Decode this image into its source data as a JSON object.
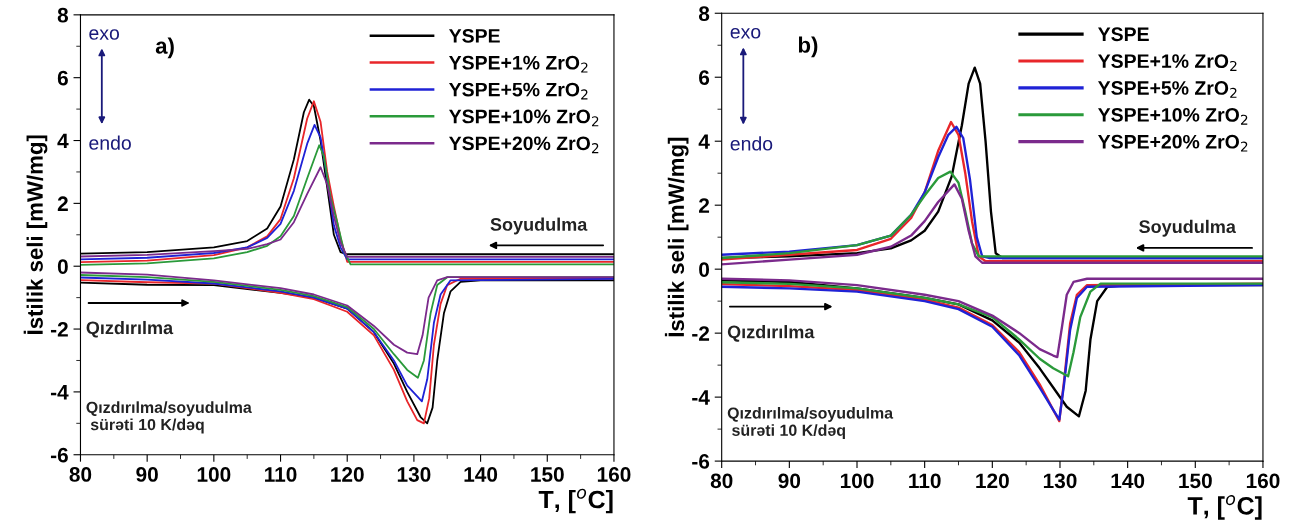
{
  "chart_data": [
    {
      "type": "line",
      "ylabel": "İstilik seli [mW/mg]",
      "xlabel": "T, [$^{o}$C]",
      "legend": "top right",
      "grid": false,
      "marker": "none",
      "line_style": "solid",
      "xlim": [
        80,
        160
      ],
      "ylim": [
        -6,
        8
      ],
      "xticks": [
        80,
        {
          "value": 85,
          "label": null
        },
        90,
        {
          "value": 95,
          "label": null
        },
        100,
        {
          "value": 105,
          "label": null
        },
        110,
        {
          "value": 115,
          "label": null
        },
        120,
        {
          "value": 125,
          "label": null
        },
        130,
        {
          "value": 135,
          "label": null
        },
        140,
        {
          "value": 145,
          "label": null
        },
        150,
        {
          "value": 155,
          "label": null
        },
        160
      ],
      "yticks": [
        -6,
        {
          "value": -5,
          "label": null
        },
        -4,
        {
          "value": -3,
          "label": null
        },
        -2,
        {
          "value": -1,
          "label": null
        },
        0,
        {
          "value": 1,
          "label": null
        },
        2,
        {
          "value": 3,
          "label": null
        },
        4,
        {
          "value": 5,
          "label": null
        },
        6,
        {
          "value": 7,
          "label": null
        },
        8
      ],
      "annotations": [
        "exo",
        "endo",
        "a)",
        "Soyudulma",
        "Qızdırılma",
        "Qızdırılma/soyudulma\n sürəti 10 K/dəq"
      ],
      "series": [
        {
          "name": "YSPE",
          "color": "#000000",
          "x": [
            80,
            90,
            100,
            105,
            108,
            110,
            112,
            113.5,
            114.3,
            115,
            116,
            117,
            118,
            119,
            120,
            130,
            140,
            160
          ],
          "values": [
            0.4,
            0.45,
            0.6,
            0.8,
            1.2,
            1.9,
            3.4,
            4.9,
            5.3,
            5.1,
            4.0,
            2.5,
            1.0,
            0.45,
            0.38,
            0.38,
            0.38,
            0.38
          ]
        },
        {
          "name": "YSPE+1% ZrO$_{2}$",
          "color": "#e8262a",
          "x": [
            80,
            90,
            100,
            105,
            108,
            110,
            112,
            114,
            115,
            116,
            117,
            118,
            119,
            120,
            160
          ],
          "values": [
            0.13,
            0.18,
            0.35,
            0.6,
            0.95,
            1.5,
            2.8,
            4.7,
            5.25,
            4.6,
            3.0,
            1.9,
            0.9,
            0.14,
            0.14
          ]
        },
        {
          "name": "YSPE+5% ZrO$_{2}$",
          "color": "#1f22d6",
          "x": [
            80,
            90,
            100,
            105,
            108,
            110,
            112,
            114,
            115.1,
            116,
            117,
            118,
            119,
            120,
            160
          ],
          "values": [
            0.22,
            0.27,
            0.42,
            0.6,
            0.9,
            1.35,
            2.4,
            3.9,
            4.5,
            4.1,
            2.8,
            1.3,
            0.6,
            0.22,
            0.22
          ]
        },
        {
          "name": "YSPE+10% ZrO$_{2}$",
          "color": "#2a9a3a",
          "x": [
            80,
            90,
            100,
            105,
            108,
            110,
            112,
            114,
            115.8,
            116.5,
            117.5,
            118.5,
            119.5,
            120.5,
            160
          ],
          "values": [
            0.04,
            0.09,
            0.25,
            0.45,
            0.65,
            0.95,
            1.6,
            2.8,
            3.85,
            3.5,
            2.2,
            1.4,
            0.5,
            0.06,
            0.06
          ]
        },
        {
          "name": "YSPE+20% ZrO$_{2}$",
          "color": "#7b2a8c",
          "x": [
            80,
            90,
            100,
            105,
            108,
            110,
            112,
            114,
            116,
            117,
            118,
            119,
            120,
            160
          ],
          "values": [
            0.31,
            0.36,
            0.48,
            0.55,
            0.7,
            0.85,
            1.4,
            2.3,
            3.15,
            2.6,
            1.6,
            0.75,
            0.3,
            0.3
          ]
        },
        {
          "color": "#000000",
          "x": [
            80,
            90,
            100,
            110,
            115,
            120,
            124,
            127,
            129,
            131,
            132,
            132.8,
            133.5,
            134.5,
            135.5,
            137,
            140,
            160
          ],
          "values": [
            -0.52,
            -0.59,
            -0.6,
            -0.85,
            -1.0,
            -1.35,
            -2.1,
            -3.1,
            -4.0,
            -4.8,
            -5.0,
            -4.5,
            -3.0,
            -1.5,
            -0.8,
            -0.5,
            -0.45,
            -0.45
          ]
        },
        {
          "color": "#e8262a",
          "x": [
            80,
            90,
            100,
            110,
            115,
            120,
            124,
            127,
            129,
            130.5,
            131.5,
            132.3,
            133,
            134,
            135,
            137,
            160
          ],
          "values": [
            -0.44,
            -0.51,
            -0.55,
            -0.85,
            -1.05,
            -1.45,
            -2.2,
            -3.3,
            -4.3,
            -4.9,
            -5.0,
            -4.2,
            -2.5,
            -1.2,
            -0.6,
            -0.4,
            -0.4
          ]
        },
        {
          "color": "#1f22d6",
          "x": [
            80,
            90,
            100,
            110,
            115,
            120,
            124,
            127,
            129,
            131.2,
            132,
            133,
            134,
            135.5,
            160
          ],
          "values": [
            -0.36,
            -0.43,
            -0.55,
            -0.8,
            -1.0,
            -1.35,
            -2.1,
            -3.0,
            -3.8,
            -4.3,
            -3.6,
            -1.8,
            -0.9,
            -0.45,
            -0.4
          ]
        },
        {
          "color": "#2a9a3a",
          "x": [
            80,
            90,
            100,
            110,
            115,
            120,
            124,
            127,
            129,
            130.6,
            131.5,
            132.5,
            133.5,
            135,
            160
          ],
          "values": [
            -0.28,
            -0.35,
            -0.5,
            -0.75,
            -0.95,
            -1.3,
            -2.0,
            -2.8,
            -3.3,
            -3.55,
            -3.0,
            -1.5,
            -0.6,
            -0.35,
            -0.35
          ]
        },
        {
          "color": "#7b2a8c",
          "x": [
            80,
            90,
            100,
            110,
            115,
            120,
            124,
            127,
            129,
            130.5,
            131.3,
            132.2,
            133.5,
            135,
            160
          ],
          "values": [
            -0.2,
            -0.27,
            -0.45,
            -0.7,
            -0.9,
            -1.25,
            -1.9,
            -2.5,
            -2.75,
            -2.8,
            -2.2,
            -1.0,
            -0.45,
            -0.35,
            -0.35
          ]
        }
      ]
    },
    {
      "type": "line",
      "ylabel": "İstilik seli [mW/mg]",
      "xlabel": "T, [$^{o}$C]",
      "legend": "top right",
      "grid": false,
      "marker": "none",
      "line_style": "solid",
      "xlim": [
        80,
        160
      ],
      "ylim": [
        -6,
        8
      ],
      "xticks": [
        80,
        {
          "value": 85,
          "label": null
        },
        90,
        {
          "value": 95,
          "label": null
        },
        100,
        {
          "value": 105,
          "label": null
        },
        110,
        {
          "value": 115,
          "label": null
        },
        120,
        {
          "value": 125,
          "label": null
        },
        130,
        {
          "value": 135,
          "label": null
        },
        140,
        {
          "value": 145,
          "label": null
        },
        150,
        {
          "value": 155,
          "label": null
        },
        160
      ],
      "yticks": [
        -6,
        {
          "value": -5,
          "label": null
        },
        -4,
        {
          "value": -3,
          "label": null
        },
        -2,
        {
          "value": -1,
          "label": null
        },
        0,
        {
          "value": 1,
          "label": null
        },
        2,
        {
          "value": 3,
          "label": null
        },
        4,
        {
          "value": 5,
          "label": null
        },
        6,
        {
          "value": 7,
          "label": null
        },
        8
      ],
      "annotations": [
        "exo",
        "endo",
        "b)",
        "Soyudulma",
        "Qızdırılma",
        "Qızdırılma/soyudulma\n sürəti 10 K/dəq"
      ],
      "series": [
        {
          "name": "YSPE",
          "color": "#000000",
          "x": [
            80,
            90,
            100,
            105,
            108,
            110,
            112,
            114,
            115.5,
            116.5,
            117.4,
            118.2,
            119,
            119.8,
            120.5,
            121.5,
            160
          ],
          "values": [
            0.35,
            0.4,
            0.5,
            0.65,
            0.9,
            1.2,
            1.8,
            2.9,
            4.5,
            5.8,
            6.3,
            5.8,
            4.0,
            1.8,
            0.5,
            0.35,
            0.35
          ]
        },
        {
          "name": "YSPE+1% ZrO$_{2}$",
          "color": "#e8262a",
          "x": [
            80,
            90,
            100,
            105,
            108,
            110,
            112,
            113.9,
            115,
            116,
            117,
            118,
            119,
            160
          ],
          "values": [
            0.3,
            0.45,
            0.6,
            0.95,
            1.6,
            2.4,
            3.7,
            4.6,
            4.2,
            3.0,
            1.5,
            0.4,
            0.25,
            0.25
          ]
        },
        {
          "name": "YSPE+5% ZrO$_{2}$",
          "color": "#1f22d6",
          "x": [
            80,
            90,
            100,
            105,
            108,
            110,
            112,
            113.5,
            114.7,
            115.7,
            116.7,
            117.7,
            118.5,
            119.5,
            160
          ],
          "values": [
            0.45,
            0.55,
            0.75,
            1.05,
            1.7,
            2.4,
            3.5,
            4.2,
            4.45,
            4.1,
            2.8,
            1.0,
            0.4,
            0.35,
            0.35
          ]
        },
        {
          "name": "YSPE+10% ZrO$_{2}$",
          "color": "#2a9a3a",
          "x": [
            80,
            90,
            100,
            105,
            108,
            110,
            112,
            113.8,
            115,
            116,
            117,
            118,
            119,
            160
          ],
          "values": [
            0.35,
            0.5,
            0.75,
            1.05,
            1.7,
            2.3,
            2.85,
            3.05,
            2.7,
            1.8,
            0.8,
            0.4,
            0.4,
            0.4
          ]
        },
        {
          "name": "YSPE+20% ZrO$_{2}$",
          "color": "#7b2a8c",
          "x": [
            80,
            90,
            100,
            105,
            108,
            110,
            112,
            114.4,
            115.5,
            116.5,
            117.5,
            118.5,
            160
          ],
          "values": [
            0.15,
            0.3,
            0.45,
            0.7,
            1.05,
            1.5,
            2.1,
            2.65,
            2.2,
            1.2,
            0.4,
            0.2,
            0.2
          ]
        },
        {
          "color": "#000000",
          "x": [
            80,
            90,
            100,
            110,
            115,
            120,
            124,
            127,
            129,
            131,
            132.8,
            133.8,
            134.5,
            135.5,
            137,
            140,
            160
          ],
          "values": [
            -0.35,
            -0.4,
            -0.6,
            -0.9,
            -1.1,
            -1.6,
            -2.3,
            -3.1,
            -3.7,
            -4.3,
            -4.6,
            -3.8,
            -2.2,
            -1.0,
            -0.55,
            -0.5,
            -0.5
          ]
        },
        {
          "color": "#e8262a",
          "x": [
            80,
            90,
            100,
            110,
            115,
            120,
            124,
            127,
            129,
            129.9,
            130.6,
            131.5,
            132.5,
            134,
            160
          ],
          "values": [
            -0.47,
            -0.53,
            -0.65,
            -0.95,
            -1.2,
            -1.75,
            -2.6,
            -3.6,
            -4.4,
            -4.75,
            -3.5,
            -1.7,
            -0.8,
            -0.5,
            -0.45
          ]
        },
        {
          "color": "#1f22d6",
          "x": [
            80,
            90,
            100,
            110,
            115,
            120,
            124,
            127,
            129,
            129.9,
            130.6,
            131.5,
            132.5,
            134,
            160
          ],
          "values": [
            -0.55,
            -0.6,
            -0.7,
            -1.0,
            -1.25,
            -1.8,
            -2.7,
            -3.7,
            -4.4,
            -4.7,
            -3.6,
            -1.9,
            -0.9,
            -0.55,
            -0.5
          ]
        },
        {
          "color": "#2a9a3a",
          "x": [
            80,
            90,
            100,
            110,
            115,
            120,
            124,
            127,
            129,
            131.2,
            132,
            133,
            134.5,
            136,
            160
          ],
          "values": [
            -0.41,
            -0.46,
            -0.6,
            -0.9,
            -1.1,
            -1.5,
            -2.2,
            -2.8,
            -3.1,
            -3.35,
            -2.6,
            -1.5,
            -0.7,
            -0.45,
            -0.45
          ]
        },
        {
          "color": "#7b2a8c",
          "x": [
            80,
            90,
            100,
            110,
            115,
            120,
            124,
            127,
            129,
            129.6,
            130.3,
            131,
            132,
            134,
            160
          ],
          "values": [
            -0.3,
            -0.35,
            -0.5,
            -0.8,
            -1.0,
            -1.45,
            -2.0,
            -2.5,
            -2.7,
            -2.75,
            -1.8,
            -0.8,
            -0.4,
            -0.3,
            -0.3
          ]
        }
      ]
    }
  ]
}
